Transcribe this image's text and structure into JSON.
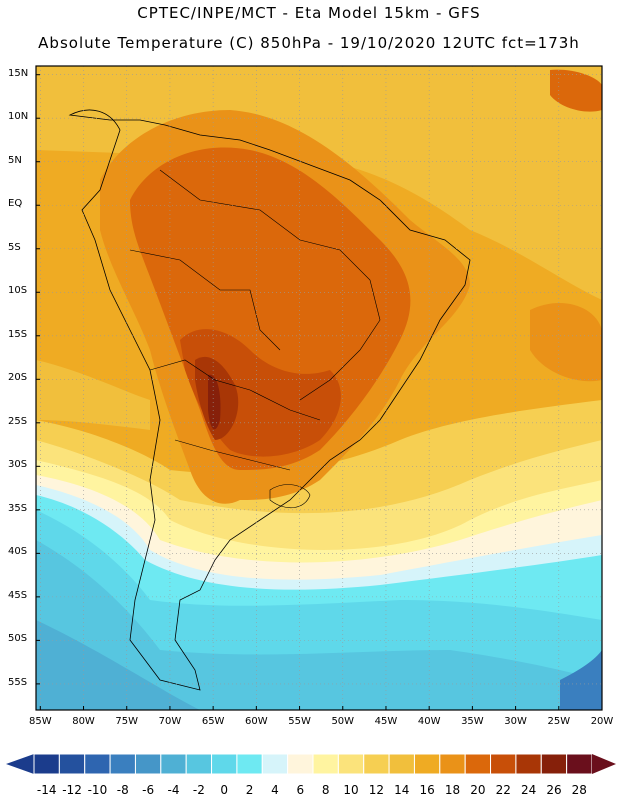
{
  "header": {
    "line1": "CPTEC/INPE/MCT -  Eta Model 15km - GFS",
    "line2": "Absolute Temperature (C) 850hPa - 19/10/2020 12UTC fct=173h"
  },
  "map": {
    "lat_labels": [
      "15N",
      "10N",
      "5N",
      "EQ",
      "5S",
      "10S",
      "15S",
      "20S",
      "25S",
      "30S",
      "35S",
      "40S",
      "45S",
      "50S",
      "55S"
    ],
    "lon_labels": [
      "85W",
      "80W",
      "75W",
      "70W",
      "65W",
      "60W",
      "55W",
      "50W",
      "45W",
      "40W",
      "35W",
      "30W",
      "25W",
      "20W"
    ],
    "lat_range": [
      -58,
      16
    ],
    "lon_range": [
      -85.5,
      -20
    ],
    "grid": "dotted"
  },
  "colorbar": {
    "ticks": [
      "-14",
      "-12",
      "-10",
      "-8",
      "-6",
      "-4",
      "-2",
      "0",
      "2",
      "4",
      "6",
      "8",
      "10",
      "12",
      "14",
      "16",
      "18",
      "20",
      "22",
      "24",
      "26",
      "28"
    ],
    "colors": [
      "#1b3c8c",
      "#24519e",
      "#2e65b0",
      "#3a7fbf",
      "#4596c8",
      "#4fb0d4",
      "#57c6e0",
      "#5fd8ea",
      "#6ee9f2",
      "#d6f4fa",
      "#fff5dc",
      "#fff4a0",
      "#fbe37b",
      "#f6cf52",
      "#f1bf3c",
      "#efab23",
      "#ea9218",
      "#db680b",
      "#c84f08",
      "#a83606",
      "#86200a",
      "#6a0f1c"
    ]
  }
}
